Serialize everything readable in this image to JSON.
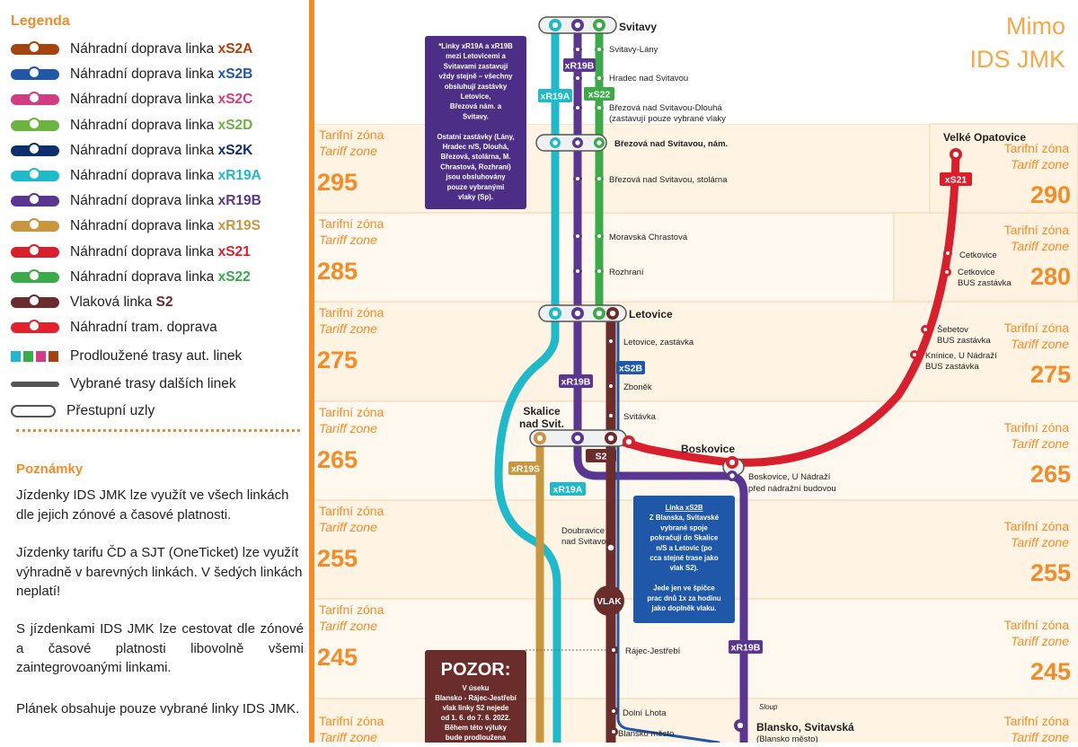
{
  "legend": {
    "title": "Legenda",
    "items": [
      {
        "name": "legend-xs2a",
        "prefix": "Náhradní doprava linka ",
        "code": "xS2A",
        "color": "#A6430F"
      },
      {
        "name": "legend-xs2b",
        "prefix": "Náhradní doprava linka ",
        "code": "xS2B",
        "color": "#1F58A8"
      },
      {
        "name": "legend-xs2c",
        "prefix": "Náhradní doprava linka ",
        "code": "xS2C",
        "color": "#D23C82"
      },
      {
        "name": "legend-xs2d",
        "prefix": "Náhradní doprava linka ",
        "code": "xS2D",
        "color": "#6CB33F"
      },
      {
        "name": "legend-xs2k",
        "prefix": "Náhradní doprava linka ",
        "code": "xS2K",
        "color": "#0E2F6E"
      },
      {
        "name": "legend-xr19a",
        "prefix": "Náhradní doprava linka ",
        "code": "xR19A",
        "color": "#1FB9C9"
      },
      {
        "name": "legend-xr19b",
        "prefix": "Náhradní doprava linka ",
        "code": "xR19B",
        "color": "#5B3690"
      },
      {
        "name": "legend-xr19s",
        "prefix": "Náhradní doprava linka ",
        "code": "xR19S",
        "color": "#C8963E"
      },
      {
        "name": "legend-xs21",
        "prefix": "Náhradní doprava linka ",
        "code": "xS21",
        "color": "#D71F2E"
      },
      {
        "name": "legend-xs22",
        "prefix": "Náhradní doprava linka ",
        "code": "xS22",
        "color": "#3BAA48"
      },
      {
        "name": "legend-s2",
        "prefix": "Vlaková linka ",
        "code": "S2",
        "color": "#6B2D2B"
      },
      {
        "name": "legend-tram",
        "prefix": "Náhradní tram. doprava",
        "code": "",
        "color": "#E3212D"
      }
    ],
    "extended_routes": "Prodloužené trasy aut. linek",
    "other_lines": "Vybrané trasy dalších linek",
    "transfer_nodes": "Přestupní uzly"
  },
  "notes": {
    "title": "Poznámky",
    "p1": "Jízdenky IDS JMK lze využít ve všech linkách dle jejich zónové a časové platnosti.",
    "p2": "Jízdenky tarifu ČD a SJT (OneTicket) lze využít výhradně v barevných linkách. V šedých linkách neplatí!",
    "p3": "S jízdenkami IDS JMK lze cestovat dle zónové a časové platnosti libovolně všemi zaintegrovoanými linkami.",
    "p4": "Plánek obsahuje pouze vybrané linky IDS JMK."
  },
  "map": {
    "outside_label": [
      "Mimo",
      "IDS JMK"
    ],
    "zone_cz": "Tarifní zóna",
    "zone_en": "Tariff zone",
    "zones_left": [
      "295",
      "285",
      "275",
      "265",
      "255",
      "245",
      ""
    ],
    "zones_right": [
      "290",
      "280",
      "275",
      "265",
      "255",
      "245",
      ""
    ],
    "stations": {
      "svitavy": "Svitavy",
      "svitavy_lany": "Svitavy-Lány",
      "hradec": "Hradec nad Svitavou",
      "brezova_dlouha": "Březová nad Svitavou-Dlouhá",
      "brezova_dlouha_note": "(zastavují pouze vybrané vlaky",
      "brezova_nam": "Březová nad Svitavou, nám.",
      "brezova_stolarna": "Březová nad Svitavou, stolárna",
      "chrastova": "Moravská Chrastová",
      "rozhrani": "Rozhraní",
      "letovice": "Letovice",
      "letovice_zastavka": "Letovice, zastávka",
      "zbonek": "Zboněk",
      "svitavka": "Svitávka",
      "skalice": [
        "Skalice",
        "nad Svit."
      ],
      "boskovice": "Boskovice",
      "boskovice_nadrazi": [
        "Boskovice, U Nádraží",
        "před nádražní budovou"
      ],
      "doubravice": [
        "Doubravice",
        "nad Svitavou"
      ],
      "rajec": "Rájec-Jestřebí",
      "dolni_lhota": "Dolní Lhota",
      "blansko_mesto": "Blansko město",
      "blansko_svitavska": "Blansko, Svitavská",
      "blansko_svitavska_sub": "(Blansko město)",
      "velke_opatovice": "Velké Opatovice",
      "cetkovice": "Cetkovice",
      "cetkovice_bus": [
        "Cetkovice",
        "BUS zastávka"
      ],
      "sebetov": [
        "Šebetov",
        "BUS zastávka"
      ],
      "knihnice": [
        "Knínice, U Nádraží",
        "BUS zastávka"
      ],
      "sloup": "Sloup"
    },
    "badges": {
      "xr19b": "xR19B",
      "xr19a": "xR19A",
      "xs22": "xS22",
      "xs2b": "xS2B",
      "s2": "S2",
      "xr19s": "xR19S",
      "xs21": "xS21",
      "vlak": "VLAK"
    },
    "note_box_1": [
      "*Linky xR19A a xR19B",
      "mezi Letovicemi a",
      "Svitavami zastavují",
      "vždy stejně – všechny",
      "obsluhují zastávky",
      "Letovice,",
      "Březová nám. a",
      "Svitavy.",
      "",
      "Ostatní zastávky (Lány,",
      "Hradec n/S, Dlouhá,",
      "Březová, stolárna, M.",
      "Chrastová, Rozhraní)",
      "jsou obsluhovány",
      "pouze vybranými",
      "vlaky (Sp)."
    ],
    "note_box_2": [
      "Linka xS2B",
      "Z Blanska, Svitavské",
      "vybrané spoje",
      "pokračují do Skalice",
      "n/S a Letovic (po",
      "cca stejné trase jako",
      "vlak S2).",
      "",
      "Jede jen ve špičce",
      "prac dnů 1x za hodinu",
      "jako doplněk vlaku."
    ],
    "pozor": {
      "title": "POZOR:",
      "lines": [
        "V úseku",
        "Blansko - Rájec-Jestřebí",
        "vlak linky S2 nejede",
        "od 1. 6. do 7. 6. 2022.",
        "Během této výluky",
        "bude prodloužena"
      ]
    },
    "colors": {
      "bg_a": "#FFF3E3",
      "bg_b": "#FFFFFF",
      "orange": "#F28C28"
    }
  }
}
